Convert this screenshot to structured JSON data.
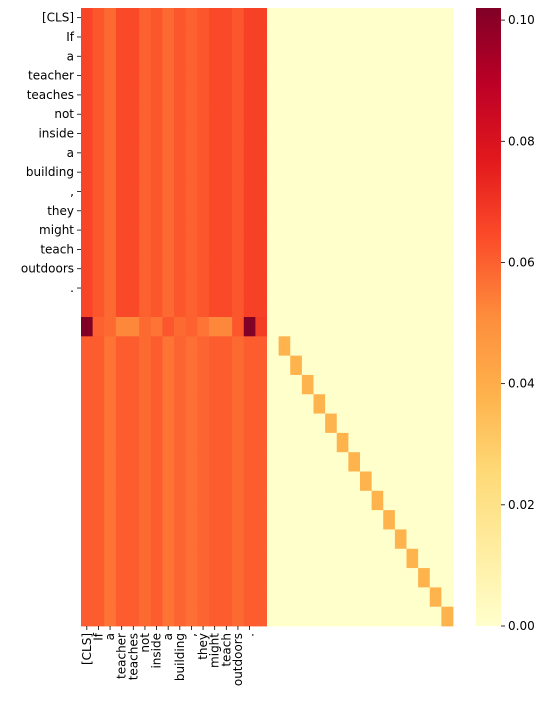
{
  "chart_data": {
    "type": "heatmap",
    "title": "",
    "xlabel": "",
    "ylabel": "",
    "x_tick_labels": [
      "[CLS]",
      "If",
      "a",
      "teacher",
      "teaches",
      "not",
      "inside",
      "a",
      "building",
      ",",
      "they",
      "might",
      "teach",
      "outdoors",
      "."
    ],
    "y_tick_labels": [
      "[CLS]",
      "If",
      "a",
      "teacher",
      "teaches",
      "not",
      "inside",
      "a",
      "building",
      ",",
      "they",
      "might",
      "teach",
      "outdoors",
      "."
    ],
    "n_rows": 32,
    "n_cols": 32,
    "colormap": "YlOrRd",
    "colorbar": {
      "min": 0.0,
      "max": 0.102,
      "ticks": [
        0.0,
        0.02,
        0.04,
        0.06,
        0.08,
        0.1
      ],
      "tick_labels": [
        "0.00",
        "0.02",
        "0.04",
        "0.06",
        "0.08",
        "0.10"
      ]
    },
    "token_rows_column_values": [
      0.066,
      0.062,
      0.058,
      0.065,
      0.065,
      0.06,
      0.062,
      0.058,
      0.062,
      0.06,
      0.062,
      0.065,
      0.065,
      0.062,
      0.067,
      0.067
    ],
    "sep_row_index": 16,
    "sep_row_values": [
      0.102,
      0.06,
      0.058,
      0.052,
      0.052,
      0.058,
      0.056,
      0.062,
      0.058,
      0.06,
      0.056,
      0.052,
      0.052,
      0.062,
      0.102,
      0.068
    ],
    "padding_rows_column_values": [
      0.061,
      0.061,
      0.056,
      0.061,
      0.061,
      0.058,
      0.061,
      0.056,
      0.059,
      0.057,
      0.059,
      0.061,
      0.061,
      0.058,
      0.061,
      0.061
    ],
    "padding_diagonal_value": 0.038,
    "empty_value": 0.0
  }
}
